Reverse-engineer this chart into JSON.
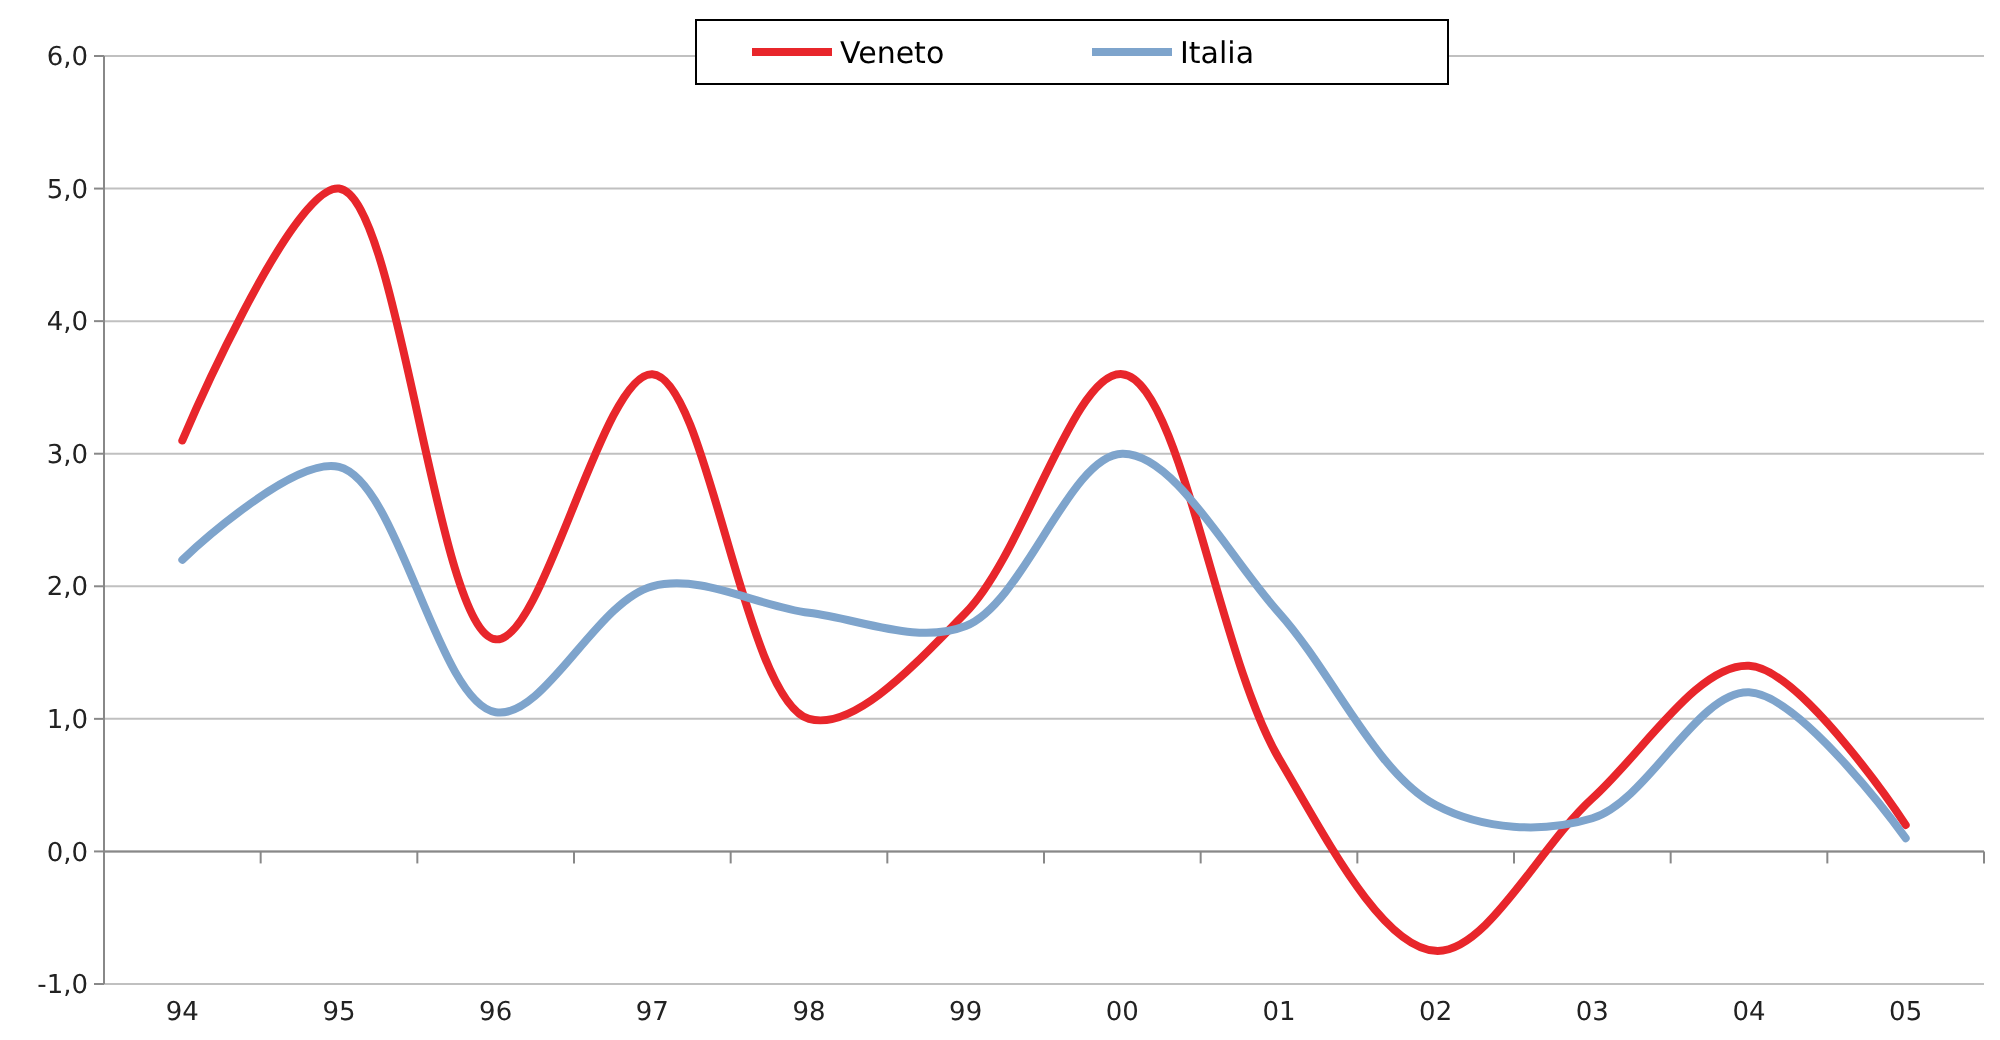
{
  "chart_data": {
    "type": "line",
    "categories": [
      "94",
      "95",
      "96",
      "97",
      "98",
      "99",
      "00",
      "01",
      "02",
      "03",
      "04",
      "05"
    ],
    "series": [
      {
        "name": "Veneto",
        "color": "#e8262b",
        "values": [
          3.1,
          5.0,
          1.6,
          3.6,
          1.0,
          1.8,
          3.6,
          0.7,
          -0.75,
          0.4,
          1.4,
          0.2
        ]
      },
      {
        "name": "Italia",
        "color": "#7ea4cc",
        "values": [
          2.2,
          2.9,
          1.05,
          2.0,
          1.8,
          1.7,
          3.0,
          1.8,
          0.35,
          0.25,
          1.2,
          0.1
        ]
      }
    ],
    "ylim": [
      -1,
      6
    ],
    "yticks": [
      {
        "value": -1,
        "label": "-1,0"
      },
      {
        "value": 0,
        "label": "0,0"
      },
      {
        "value": 1,
        "label": "1,0"
      },
      {
        "value": 2,
        "label": "2,0"
      },
      {
        "value": 3,
        "label": "3,0"
      },
      {
        "value": 4,
        "label": "4,0"
      },
      {
        "value": 5,
        "label": "5,0"
      },
      {
        "value": 6,
        "label": "6,0"
      }
    ],
    "grid": "y",
    "legend": "top",
    "marker": "none",
    "line_style": "solid"
  }
}
